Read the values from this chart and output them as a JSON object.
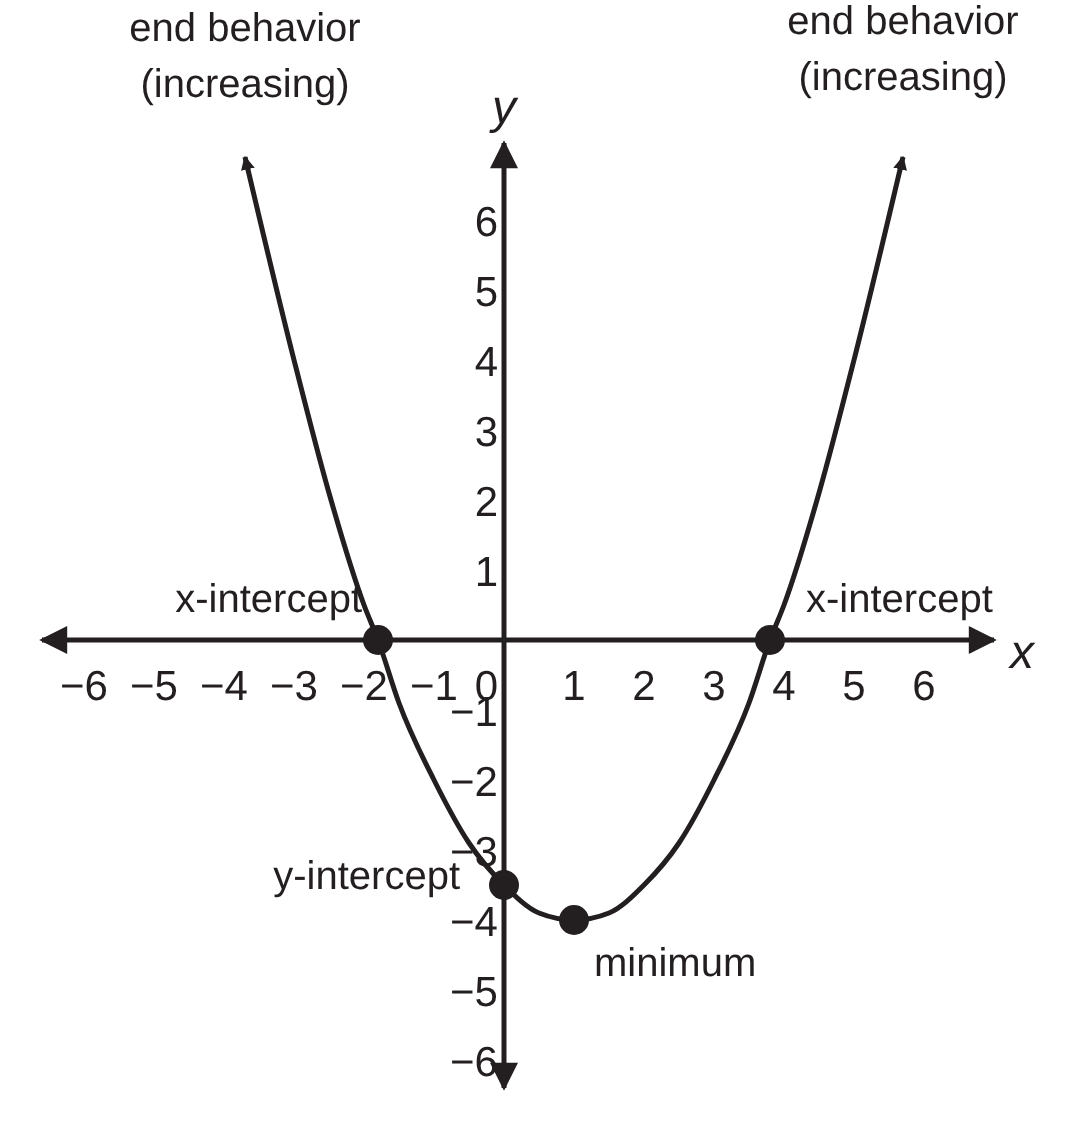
{
  "chart_data": {
    "type": "line",
    "xlabel": "x",
    "ylabel": "y",
    "xlim": [
      -6.6,
      7.0
    ],
    "ylim": [
      -6.4,
      7.1
    ],
    "xticks": [
      -6,
      -5,
      -4,
      -3,
      -2,
      -1,
      0,
      1,
      2,
      3,
      4,
      5,
      6
    ],
    "yticks": [
      -6,
      -5,
      -4,
      -3,
      -2,
      -1,
      1,
      2,
      3,
      4,
      5,
      6
    ],
    "grid": false,
    "series": [
      {
        "color": "#231f20",
        "marker": "none",
        "x": [
          -3.7,
          -3,
          -2.5,
          -2,
          -1.8,
          -1.5,
          -1,
          -0.5,
          0,
          0.5,
          1,
          1.5,
          2,
          2.5,
          3,
          3.5,
          3.8,
          4,
          4.5,
          5,
          5.7
        ],
        "values": [
          6.9,
          4,
          2.1,
          0.5,
          0,
          -0.9,
          -2,
          -2.9,
          -3.5,
          -3.9,
          -4,
          -3.9,
          -3.5,
          -2.9,
          -2,
          -0.9,
          0,
          0.5,
          2.1,
          4,
          6.9
        ]
      },
      {
        "type": "scatter",
        "color": "#231f20",
        "marker": "circle",
        "x": [
          -1.8,
          3.8,
          0,
          1
        ],
        "values": [
          0,
          0,
          -3.5,
          -4
        ]
      }
    ],
    "annotations": [
      {
        "text": "end behavior\n(increasing)",
        "x": -3.7,
        "y": 6.9
      },
      {
        "text": "end behavior\n(increasing)",
        "x": 5.7,
        "y": 7
      },
      {
        "text": "x-intercept",
        "x": -1.8,
        "y": 0
      },
      {
        "text": "x-intercept",
        "x": 3.8,
        "y": 0
      },
      {
        "text": "y-intercept",
        "x": 0,
        "y": -3.5
      },
      {
        "text": "minimum",
        "x": 1,
        "y": -4
      }
    ]
  }
}
